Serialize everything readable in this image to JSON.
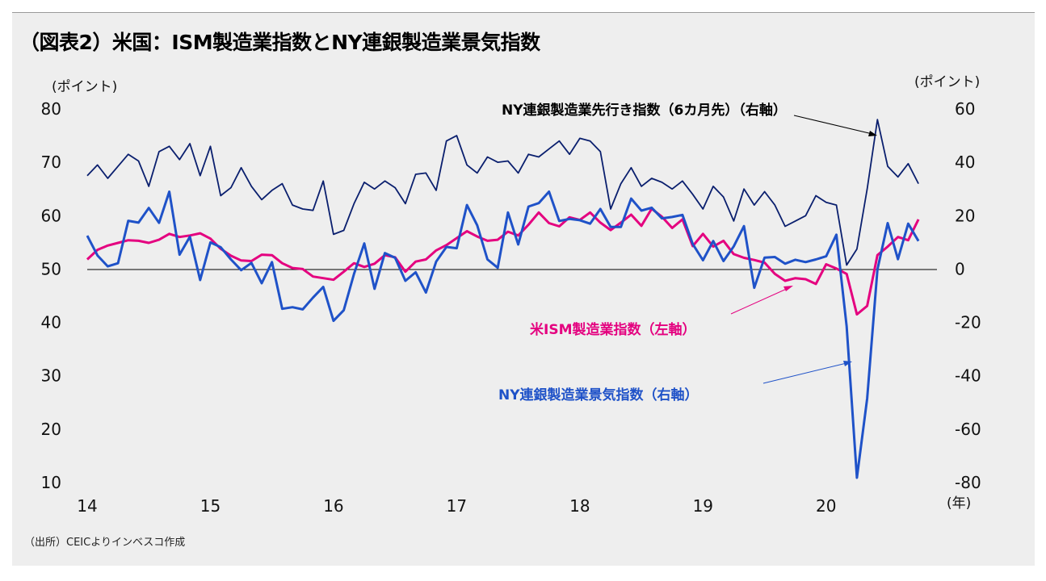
{
  "title": "（図表2）米国：ISM製造業指数とNY連銀製造業景気指数",
  "source": "（出所）CEICよりインベスコ作成",
  "colors": {
    "ism": "#e4007f",
    "ny_current": "#1f52c8",
    "ny_future": "#0a1f6e",
    "negative_tick": "#e00000"
  },
  "chart_data": {
    "type": "line",
    "left_axis": {
      "unit_label": "(ポイント)",
      "range": [
        10,
        80
      ],
      "ticks": [
        "80",
        "70",
        "60",
        "50",
        "40",
        "30",
        "20",
        "10"
      ]
    },
    "right_axis": {
      "unit_label": "(ポイント)",
      "range": [
        -80,
        60
      ],
      "ticks": [
        "60",
        "40",
        "20",
        "0",
        "-20",
        "-40",
        "-60",
        "-80"
      ]
    },
    "x_axis": {
      "unit_label": "(年)",
      "range": [
        2014,
        2020.9
      ],
      "ticks": [
        "14",
        "15",
        "16",
        "17",
        "18",
        "19",
        "20"
      ]
    },
    "reference_line": "y=50 (left) / 0 (right)",
    "grid": false,
    "legend": "inline annotations",
    "annotations": {
      "future": "NY連銀製造業先行き指数（6カ月先）（右軸）",
      "ism": "米ISM製造業指数（左軸）",
      "current": "NY連銀製造業景気指数（右軸）"
    },
    "series": [
      {
        "name": "米ISM製造業指数（左軸）",
        "axis": "left",
        "values": [
          51.8,
          53.6,
          54.4,
          54.9,
          55.4,
          55.3,
          54.9,
          55.5,
          56.6,
          56.0,
          56.3,
          56.7,
          55.7,
          53.8,
          52.5,
          51.6,
          51.5,
          52.7,
          52.6,
          51.1,
          50.2,
          50.0,
          48.6,
          48.3,
          48.0,
          49.5,
          51.1,
          50.4,
          51.0,
          52.6,
          52.2,
          49.5,
          51.4,
          51.8,
          53.5,
          54.5,
          55.8,
          57.1,
          56.1,
          55.3,
          55.5,
          57.0,
          56.3,
          58.3,
          60.6,
          58.6,
          58.0,
          59.7,
          59.2,
          60.6,
          58.7,
          57.3,
          58.7,
          60.2,
          58.1,
          61.3,
          59.8,
          57.7,
          59.3,
          54.3,
          56.6,
          54.2,
          55.3,
          52.8,
          52.1,
          51.7,
          51.2,
          49.1,
          47.8,
          48.3,
          48.1,
          47.2,
          50.9,
          50.1,
          49.1,
          41.5,
          43.1,
          52.6,
          54.2,
          56.0,
          55.4,
          59.3
        ]
      },
      {
        "name": "NY連銀製造業景気指数（右軸）",
        "axis": "right",
        "values": [
          12.5,
          5.1,
          1.0,
          2.2,
          18.1,
          17.4,
          22.9,
          17.3,
          29.0,
          5.4,
          12.1,
          -4.1,
          10.0,
          8.2,
          3.6,
          -0.4,
          2.3,
          -5.3,
          2.6,
          -14.9,
          -14.3,
          -15.1,
          -10.7,
          -6.7,
          -19.4,
          -15.4,
          -1.8,
          9.6,
          -7.4,
          6.0,
          4.2,
          -4.4,
          -1.2,
          -8.8,
          2.8,
          8.3,
          7.8,
          24.0,
          16.4,
          3.6,
          0.5,
          21.2,
          9.2,
          23.4,
          24.7,
          29.0,
          18.0,
          18.8,
          18.3,
          17.0,
          22.5,
          15.8,
          15.8,
          26.4,
          21.9,
          23.0,
          19.0,
          19.5,
          20.3,
          9.4,
          3.3,
          10.5,
          3.0,
          8.5,
          16.1,
          -7.0,
          4.3,
          4.5,
          2.0,
          3.5,
          2.6,
          3.6,
          4.8,
          12.9,
          -21.5,
          -78.2,
          -48.5,
          -0.2,
          17.2,
          3.7,
          17.0,
          10.5
        ]
      },
      {
        "name": "NY連銀製造業先行き指数（6カ月先）（右軸）",
        "axis": "right",
        "values": [
          35.0,
          39.0,
          34.0,
          38.5,
          43.0,
          40.5,
          31.0,
          44.0,
          46.0,
          41.0,
          47.0,
          35.0,
          46.0,
          27.5,
          30.5,
          38.0,
          31.0,
          26.0,
          29.5,
          32.0,
          24.0,
          22.5,
          22.0,
          33.0,
          13.0,
          14.5,
          24.5,
          32.5,
          30.0,
          33.0,
          30.5,
          24.5,
          35.5,
          36.0,
          29.5,
          48.0,
          50.0,
          39.0,
          36.0,
          42.0,
          40.0,
          40.5,
          36.0,
          43.0,
          42.0,
          45.0,
          48.0,
          43.0,
          49.0,
          48.0,
          44.0,
          22.5,
          32.0,
          38.0,
          31.0,
          34.0,
          32.5,
          30.0,
          33.0,
          28.0,
          22.5,
          31.0,
          27.0,
          18.0,
          30.0,
          24.0,
          29.0,
          24.0,
          16.0,
          18.0,
          20.0,
          27.5,
          25.0,
          24.0,
          1.5,
          7.5,
          30.0,
          56.0,
          38.5,
          34.5,
          39.5,
          32.0
        ]
      }
    ]
  }
}
